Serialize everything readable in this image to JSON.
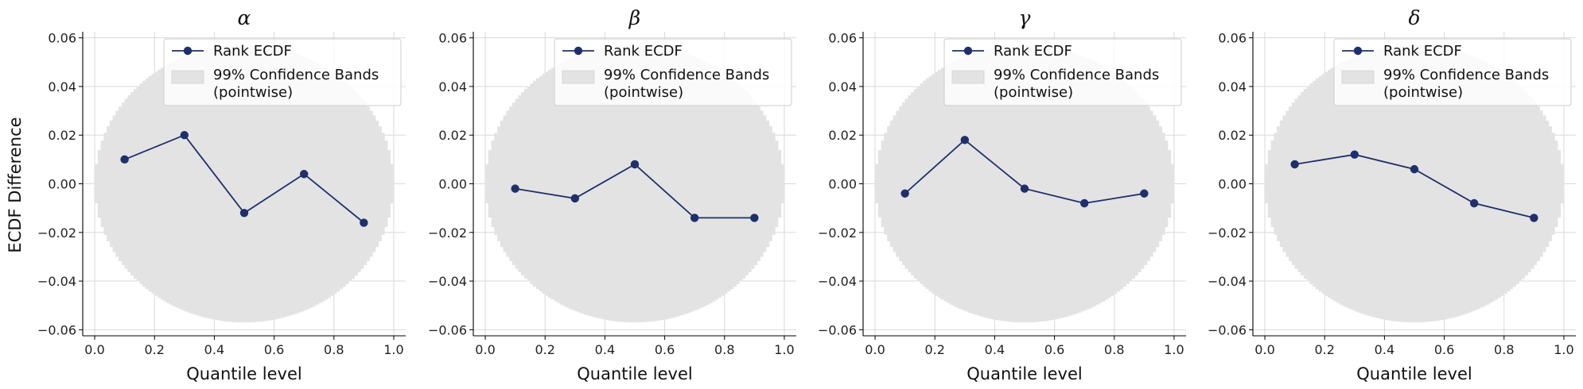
{
  "chart_data": {
    "type": "line",
    "ylabel": "ECDF Difference",
    "xlabel": "Quantile level",
    "xlim": [
      -0.04,
      1.04
    ],
    "ylim": [
      -0.0625,
      0.0625
    ],
    "xticks": [
      0.0,
      0.2,
      0.4,
      0.6,
      0.8,
      1.0
    ],
    "xtick_labels": [
      "0.0",
      "0.2",
      "0.4",
      "0.6",
      "0.8",
      "1.0"
    ],
    "yticks": [
      -0.06,
      -0.04,
      -0.02,
      0.0,
      0.02,
      0.04,
      0.06
    ],
    "ytick_labels": [
      "−0.06",
      "−0.04",
      "−0.02",
      "0.00",
      "0.02",
      "0.04",
      "0.06"
    ],
    "grid": true,
    "legend_position": "top-right",
    "legend": {
      "line_label": "Rank ECDF",
      "band_label_line1": "99% Confidence Bands",
      "band_label_line2": "(pointwise)"
    },
    "colors": {
      "line": "#1f2f6b",
      "band": "#e3e3e3",
      "grid": "#d9d9d9"
    },
    "band": {
      "max_half_width": 0.057,
      "steps": 100
    },
    "panels": [
      {
        "title": "α",
        "x": [
          0.1,
          0.3,
          0.5,
          0.7,
          0.9
        ],
        "y": [
          0.01,
          0.02,
          -0.012,
          0.004,
          -0.016
        ]
      },
      {
        "title": "β",
        "x": [
          0.1,
          0.3,
          0.5,
          0.7,
          0.9
        ],
        "y": [
          -0.002,
          -0.006,
          0.008,
          -0.014,
          -0.014
        ]
      },
      {
        "title": "γ",
        "x": [
          0.1,
          0.3,
          0.5,
          0.7,
          0.9
        ],
        "y": [
          -0.004,
          0.018,
          -0.002,
          -0.008,
          -0.004
        ]
      },
      {
        "title": "δ",
        "x": [
          0.1,
          0.3,
          0.5,
          0.7,
          0.9
        ],
        "y": [
          0.008,
          0.012,
          0.006,
          -0.008,
          -0.014
        ]
      }
    ]
  }
}
